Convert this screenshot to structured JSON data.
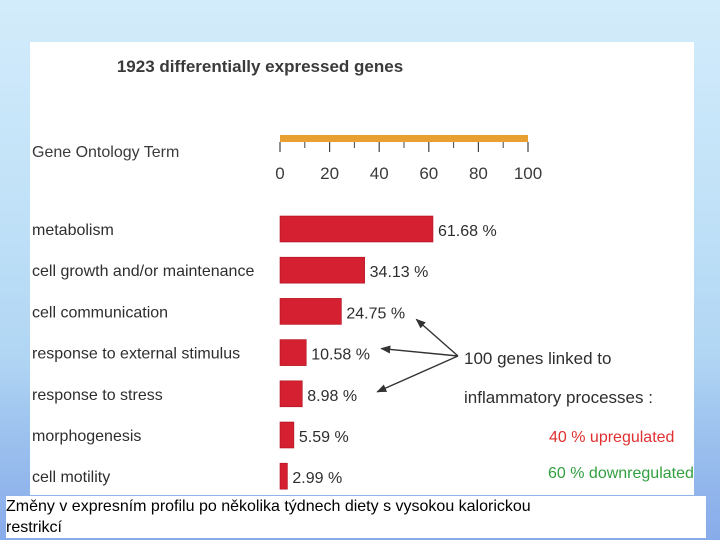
{
  "chart_data": {
    "type": "bar",
    "orientation": "horizontal",
    "title": "1923 differentially expressed genes",
    "ylabel": "Gene Ontology Term",
    "categories": [
      "metabolism",
      "cell growth and/or maintenance",
      "cell communication",
      "response to external stimulus",
      "response to stress",
      "morphogenesis",
      "cell motility"
    ],
    "values": [
      61.68,
      34.13,
      24.75,
      10.58,
      8.98,
      5.59,
      2.99
    ],
    "value_labels": [
      "61.68 %",
      "34.13 %",
      "24.75 %",
      "10.58 %",
      "8.98 %",
      "5.59 %",
      "2.99 %"
    ],
    "xlim": [
      0,
      100
    ],
    "xticks": [
      "0",
      "20",
      "40",
      "60",
      "80",
      "100"
    ],
    "bar_color": "#d42030",
    "axis_color": "#e8a030",
    "annotation": {
      "line1": "100 genes linked to",
      "line2": "inflammatory processes :",
      "up": "40 % upregulated",
      "down": "60 % downregulated",
      "up_color": "#e03030",
      "down_color": "#33a040",
      "arrow_targets": [
        "cell communication",
        "response to external stimulus",
        "response to stress"
      ]
    }
  },
  "caption": {
    "line1": "Změny v expresním profilu po několika týdnech diety s vysokou  kalorickou",
    "line2": "restrikcí"
  }
}
